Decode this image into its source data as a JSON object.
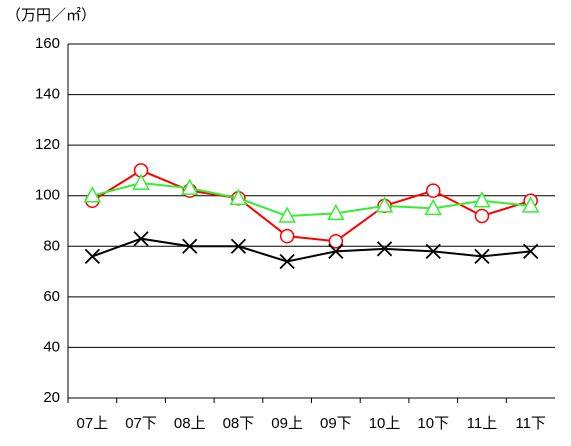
{
  "chart_data": {
    "type": "line",
    "y_label": "（万円／㎡）",
    "categories": [
      "07上",
      "07下",
      "08上",
      "08下",
      "09上",
      "09下",
      "10上",
      "10下",
      "11上",
      "11下"
    ],
    "series": [
      {
        "color": "#ff0000",
        "marker": "circle",
        "values": [
          98,
          110,
          102,
          99,
          84,
          82,
          96,
          102,
          92,
          98
        ]
      },
      {
        "color": "#33ee33",
        "marker": "triangle",
        "values": [
          100,
          105,
          103,
          99,
          92,
          93,
          96,
          95,
          98,
          96
        ]
      },
      {
        "color": "#000000",
        "marker": "cross",
        "values": [
          76,
          83,
          80,
          80,
          74,
          78,
          79,
          78,
          76,
          78
        ]
      }
    ],
    "ylim": [
      20,
      160
    ],
    "yticks": [
      20,
      40,
      60,
      80,
      100,
      120,
      140,
      160
    ],
    "grid": true
  }
}
